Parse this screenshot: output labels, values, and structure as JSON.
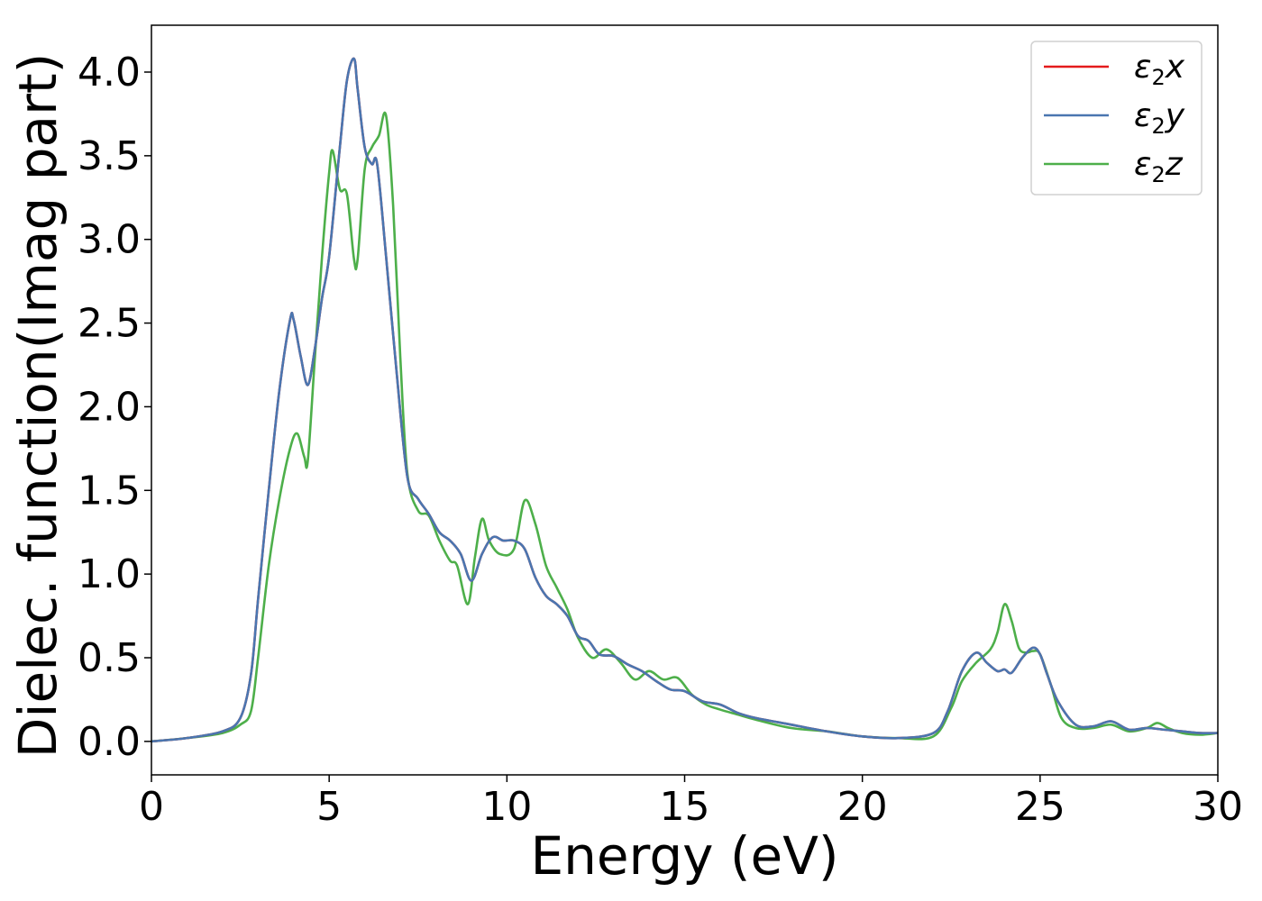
{
  "chart_data": {
    "type": "line",
    "xlabel": "Energy (eV)",
    "ylabel": "Dielec. function(Imag part)",
    "xlim": [
      0,
      30
    ],
    "ylim": [
      -0.2,
      4.28
    ],
    "xticks": [
      0,
      5,
      10,
      15,
      20,
      25,
      30
    ],
    "xtick_labels": [
      "0",
      "5",
      "10",
      "15",
      "20",
      "25",
      "30"
    ],
    "yticks": [
      0.0,
      0.5,
      1.0,
      1.5,
      2.0,
      2.5,
      3.0,
      3.5,
      4.0
    ],
    "ytick_labels": [
      "0.0",
      "0.5",
      "1.0",
      "1.5",
      "2.0",
      "2.5",
      "3.0",
      "3.5",
      "4.0"
    ],
    "grid": false,
    "legend_position": "top-right",
    "series": [
      {
        "name": "ε2x",
        "legend_base": "ε",
        "legend_sub": "2",
        "legend_tail": "x",
        "color": "#e41a1c",
        "x": [
          0,
          1,
          2,
          2.5,
          2.8,
          3.0,
          3.3,
          3.6,
          3.9,
          4.0,
          4.2,
          4.4,
          4.6,
          4.8,
          5.0,
          5.3,
          5.5,
          5.7,
          5.8,
          6.0,
          6.2,
          6.35,
          6.6,
          6.9,
          7.2,
          7.5,
          7.8,
          8.1,
          8.4,
          8.7,
          9.0,
          9.3,
          9.6,
          9.9,
          10.2,
          10.5,
          10.8,
          11.1,
          11.4,
          11.7,
          12.0,
          12.3,
          12.6,
          13.0,
          13.4,
          13.8,
          14.2,
          14.6,
          15.0,
          15.5,
          16.0,
          16.5,
          17.0,
          18.0,
          19.0,
          20.0,
          21.0,
          22.0,
          22.4,
          22.8,
          23.2,
          23.5,
          23.8,
          24.0,
          24.2,
          24.5,
          24.8,
          25.0,
          25.2,
          25.5,
          26.0,
          26.5,
          27.0,
          27.5,
          28.0,
          28.5,
          29.0,
          29.5,
          30.0
        ],
        "values": [
          0.0,
          0.02,
          0.06,
          0.14,
          0.4,
          0.85,
          1.5,
          2.1,
          2.52,
          2.52,
          2.3,
          2.13,
          2.35,
          2.65,
          2.9,
          3.55,
          3.95,
          4.08,
          3.9,
          3.55,
          3.45,
          3.45,
          2.9,
          2.2,
          1.58,
          1.45,
          1.36,
          1.25,
          1.2,
          1.12,
          0.96,
          1.12,
          1.22,
          1.2,
          1.2,
          1.15,
          0.98,
          0.87,
          0.82,
          0.75,
          0.63,
          0.6,
          0.52,
          0.51,
          0.46,
          0.42,
          0.36,
          0.31,
          0.3,
          0.24,
          0.22,
          0.17,
          0.14,
          0.1,
          0.06,
          0.03,
          0.02,
          0.05,
          0.18,
          0.42,
          0.53,
          0.47,
          0.42,
          0.43,
          0.41,
          0.5,
          0.56,
          0.52,
          0.4,
          0.24,
          0.1,
          0.09,
          0.12,
          0.07,
          0.08,
          0.07,
          0.06,
          0.05,
          0.05
        ]
      },
      {
        "name": "ε2y",
        "legend_base": "ε",
        "legend_sub": "2",
        "legend_tail": "y",
        "color": "#4a76b0",
        "x": [
          0,
          1,
          2,
          2.5,
          2.8,
          3.0,
          3.3,
          3.6,
          3.9,
          4.0,
          4.2,
          4.4,
          4.6,
          4.8,
          5.0,
          5.3,
          5.5,
          5.7,
          5.8,
          6.0,
          6.2,
          6.35,
          6.6,
          6.9,
          7.2,
          7.5,
          7.8,
          8.1,
          8.4,
          8.7,
          9.0,
          9.3,
          9.6,
          9.9,
          10.2,
          10.5,
          10.8,
          11.1,
          11.4,
          11.7,
          12.0,
          12.3,
          12.6,
          13.0,
          13.4,
          13.8,
          14.2,
          14.6,
          15.0,
          15.5,
          16.0,
          16.5,
          17.0,
          18.0,
          19.0,
          20.0,
          21.0,
          22.0,
          22.4,
          22.8,
          23.2,
          23.5,
          23.8,
          24.0,
          24.2,
          24.5,
          24.8,
          25.0,
          25.2,
          25.5,
          26.0,
          26.5,
          27.0,
          27.5,
          28.0,
          28.5,
          29.0,
          29.5,
          30.0
        ],
        "values": [
          0.0,
          0.02,
          0.06,
          0.14,
          0.4,
          0.85,
          1.5,
          2.1,
          2.52,
          2.52,
          2.3,
          2.13,
          2.35,
          2.65,
          2.9,
          3.55,
          3.95,
          4.08,
          3.9,
          3.55,
          3.45,
          3.45,
          2.9,
          2.2,
          1.58,
          1.45,
          1.36,
          1.25,
          1.2,
          1.12,
          0.96,
          1.12,
          1.22,
          1.2,
          1.2,
          1.15,
          0.98,
          0.87,
          0.82,
          0.75,
          0.63,
          0.6,
          0.52,
          0.51,
          0.46,
          0.42,
          0.36,
          0.31,
          0.3,
          0.24,
          0.22,
          0.17,
          0.14,
          0.1,
          0.06,
          0.03,
          0.02,
          0.05,
          0.18,
          0.42,
          0.53,
          0.47,
          0.42,
          0.43,
          0.41,
          0.5,
          0.56,
          0.52,
          0.4,
          0.24,
          0.1,
          0.09,
          0.12,
          0.07,
          0.08,
          0.07,
          0.06,
          0.05,
          0.05
        ]
      },
      {
        "name": "ε2z",
        "legend_base": "ε",
        "legend_sub": "2",
        "legend_tail": "z",
        "color": "#4daf4a",
        "x": [
          0,
          1,
          2,
          2.5,
          2.8,
          3.0,
          3.3,
          3.6,
          3.9,
          4.1,
          4.3,
          4.4,
          4.6,
          4.8,
          5.0,
          5.1,
          5.3,
          5.5,
          5.7,
          5.8,
          6.0,
          6.2,
          6.4,
          6.6,
          6.8,
          7.0,
          7.2,
          7.5,
          7.8,
          8.1,
          8.4,
          8.6,
          8.9,
          9.1,
          9.3,
          9.5,
          9.8,
          10.2,
          10.5,
          10.8,
          11.1,
          11.4,
          11.7,
          12.0,
          12.4,
          12.8,
          13.2,
          13.6,
          14.0,
          14.4,
          14.8,
          15.2,
          15.6,
          16.0,
          16.5,
          17.0,
          18.0,
          19.0,
          20.0,
          21.0,
          22.0,
          22.5,
          22.8,
          23.2,
          23.6,
          23.8,
          24.0,
          24.2,
          24.4,
          24.6,
          24.8,
          25.0,
          25.3,
          25.6,
          26.0,
          26.5,
          27.0,
          27.5,
          28.0,
          28.3,
          28.6,
          29.0,
          29.5,
          30.0
        ],
        "values": [
          0.0,
          0.02,
          0.05,
          0.1,
          0.18,
          0.5,
          1.05,
          1.45,
          1.75,
          1.84,
          1.7,
          1.68,
          2.3,
          2.9,
          3.4,
          3.53,
          3.3,
          3.27,
          2.88,
          2.88,
          3.42,
          3.55,
          3.62,
          3.74,
          3.2,
          2.3,
          1.6,
          1.38,
          1.35,
          1.2,
          1.08,
          1.05,
          0.82,
          1.1,
          1.33,
          1.2,
          1.12,
          1.15,
          1.44,
          1.3,
          1.05,
          0.92,
          0.79,
          0.62,
          0.5,
          0.55,
          0.47,
          0.37,
          0.42,
          0.37,
          0.38,
          0.28,
          0.22,
          0.19,
          0.16,
          0.13,
          0.08,
          0.06,
          0.03,
          0.02,
          0.03,
          0.2,
          0.36,
          0.47,
          0.55,
          0.65,
          0.82,
          0.72,
          0.56,
          0.53,
          0.54,
          0.52,
          0.34,
          0.14,
          0.08,
          0.08,
          0.1,
          0.06,
          0.08,
          0.11,
          0.08,
          0.05,
          0.04,
          0.05
        ]
      }
    ]
  }
}
